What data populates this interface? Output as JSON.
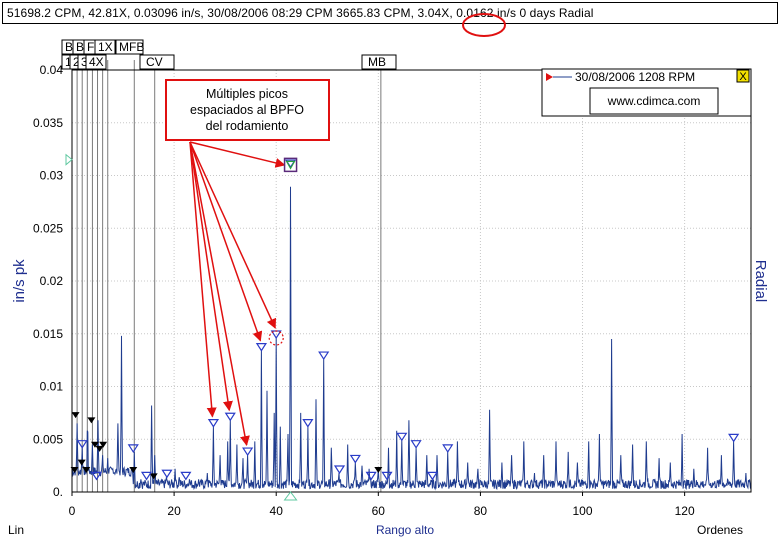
{
  "header": {
    "readout_before": "51698.2 CPM, 42.81X, 0.03096 in/s, 30/08/2006 08:29 CPM 3665.83 CPM, ",
    "readout_circled": "3.04X",
    "readout_after": ", 0.0162 in/s 0 days Radial"
  },
  "annotation": {
    "line1": "Múltiples picos",
    "line2": "espaciados al BPFO",
    "line3": "del rodamiento"
  },
  "legend": {
    "entry": "30/08/2006 1208 RPM",
    "website": "www.cdimca.com",
    "close_symbol": "X"
  },
  "fault_markers": {
    "top_row": [
      "BPFI",
      "BSF",
      "FTF",
      "1X",
      "MFB"
    ],
    "second_row": [
      "1X",
      "2X",
      "3X",
      "4X",
      "CV",
      "MB"
    ]
  },
  "colors": {
    "spectrum": "#1f3c8f",
    "harmonic_marker": "#2a3cc8",
    "annotation": "#e01010",
    "background": "#ffffff",
    "axis_label": "#1f2f8f"
  },
  "chart_data": {
    "type": "line",
    "title": "",
    "xlabel": "Rango alto",
    "ylabel": "in/s pk",
    "right_label": "Radial",
    "scale_label": "Lin",
    "xunit_label": "Ordenes",
    "xlim": [
      0,
      133
    ],
    "ylim": [
      0,
      0.04
    ],
    "xticks": [
      0,
      20,
      40,
      60,
      80,
      100,
      120
    ],
    "yticks": [
      "0.",
      "0.005",
      "0.01",
      "0.015",
      "0.02",
      "0.025",
      "0.03",
      "0.035",
      "0.04"
    ],
    "grid": true,
    "legend_position": "top-right",
    "cursor_peak": {
      "x": 42.81,
      "y": 0.03096
    },
    "harmonic_cursor": {
      "x": 40.0,
      "y": 0.0146
    },
    "fault_lines": [
      {
        "label": "1X",
        "x": 1
      },
      {
        "label": "BPFI",
        "x": 2
      },
      {
        "label": "2X",
        "x": 3
      },
      {
        "label": "BSF",
        "x": 4
      },
      {
        "label": "3X",
        "x": 5
      },
      {
        "label": "FTF",
        "x": 6
      },
      {
        "label": "4X",
        "x": 7
      },
      {
        "label": "MFB",
        "x": 12.2
      },
      {
        "label": "CV",
        "x": 16.2
      },
      {
        "label": "MB",
        "x": 60.5
      }
    ],
    "peaks": [
      {
        "x": 1.0,
        "y": 0.0065
      },
      {
        "x": 2.0,
        "y": 0.0042
      },
      {
        "x": 3.05,
        "y": 0.0075
      },
      {
        "x": 4.0,
        "y": 0.0045
      },
      {
        "x": 5.1,
        "y": 0.0068
      },
      {
        "x": 6.0,
        "y": 0.0035
      },
      {
        "x": 7.0,
        "y": 0.0032
      },
      {
        "x": 8.0,
        "y": 0.0022
      },
      {
        "x": 9.0,
        "y": 0.0065
      },
      {
        "x": 9.7,
        "y": 0.0148
      },
      {
        "x": 11.0,
        "y": 0.0018
      },
      {
        "x": 12.2,
        "y": 0.0038
      },
      {
        "x": 13.5,
        "y": 0.0012
      },
      {
        "x": 15.6,
        "y": 0.0082
      },
      {
        "x": 16.2,
        "y": 0.0035
      },
      {
        "x": 18.5,
        "y": 0.0014
      },
      {
        "x": 20.2,
        "y": 0.0022
      },
      {
        "x": 21.0,
        "y": 0.0014
      },
      {
        "x": 23.0,
        "y": 0.0012
      },
      {
        "x": 24.8,
        "y": 0.0012
      },
      {
        "x": 26.5,
        "y": 0.0018
      },
      {
        "x": 27.7,
        "y": 0.0062
      },
      {
        "x": 29.0,
        "y": 0.0035
      },
      {
        "x": 30.5,
        "y": 0.0048
      },
      {
        "x": 31.0,
        "y": 0.0068
      },
      {
        "x": 32.3,
        "y": 0.0045
      },
      {
        "x": 33.5,
        "y": 0.0032
      },
      {
        "x": 34.4,
        "y": 0.0035
      },
      {
        "x": 35.8,
        "y": 0.0048
      },
      {
        "x": 37.1,
        "y": 0.0134
      },
      {
        "x": 38.2,
        "y": 0.0096
      },
      {
        "x": 39.6,
        "y": 0.0075
      },
      {
        "x": 40.0,
        "y": 0.0146
      },
      {
        "x": 40.8,
        "y": 0.0062
      },
      {
        "x": 42.3,
        "y": 0.0055
      },
      {
        "x": 42.81,
        "y": 0.0308
      },
      {
        "x": 44.8,
        "y": 0.0075
      },
      {
        "x": 46.2,
        "y": 0.0062
      },
      {
        "x": 47.8,
        "y": 0.0088
      },
      {
        "x": 49.3,
        "y": 0.0126
      },
      {
        "x": 50.8,
        "y": 0.0042
      },
      {
        "x": 52.3,
        "y": 0.0018
      },
      {
        "x": 54.0,
        "y": 0.0045
      },
      {
        "x": 55.5,
        "y": 0.0028
      },
      {
        "x": 56.8,
        "y": 0.0025
      },
      {
        "x": 58.2,
        "y": 0.0022
      },
      {
        "x": 60.0,
        "y": 0.0022
      },
      {
        "x": 62.0,
        "y": 0.0042
      },
      {
        "x": 63.6,
        "y": 0.0058
      },
      {
        "x": 64.6,
        "y": 0.0049
      },
      {
        "x": 66.0,
        "y": 0.0068
      },
      {
        "x": 67.4,
        "y": 0.0042
      },
      {
        "x": 69.5,
        "y": 0.0035
      },
      {
        "x": 71.5,
        "y": 0.0035
      },
      {
        "x": 73.6,
        "y": 0.0038
      },
      {
        "x": 75.5,
        "y": 0.0048
      },
      {
        "x": 77.5,
        "y": 0.0028
      },
      {
        "x": 79.5,
        "y": 0.0022
      },
      {
        "x": 81.8,
        "y": 0.0078
      },
      {
        "x": 84.2,
        "y": 0.0028
      },
      {
        "x": 86.1,
        "y": 0.0035
      },
      {
        "x": 88.5,
        "y": 0.0048
      },
      {
        "x": 90.6,
        "y": 0.0018
      },
      {
        "x": 92.4,
        "y": 0.0035
      },
      {
        "x": 94.8,
        "y": 0.0048
      },
      {
        "x": 97.2,
        "y": 0.0038
      },
      {
        "x": 99.0,
        "y": 0.0028
      },
      {
        "x": 101.2,
        "y": 0.0048
      },
      {
        "x": 103.3,
        "y": 0.0055
      },
      {
        "x": 105.7,
        "y": 0.0145
      },
      {
        "x": 107.5,
        "y": 0.0035
      },
      {
        "x": 109.8,
        "y": 0.0045
      },
      {
        "x": 112.5,
        "y": 0.0048
      },
      {
        "x": 115.0,
        "y": 0.0032
      },
      {
        "x": 117.2,
        "y": 0.0028
      },
      {
        "x": 119.5,
        "y": 0.0055
      },
      {
        "x": 121.8,
        "y": 0.0022
      },
      {
        "x": 124.5,
        "y": 0.0042
      },
      {
        "x": 127.2,
        "y": 0.0035
      },
      {
        "x": 129.6,
        "y": 0.0048
      },
      {
        "x": 132.0,
        "y": 0.0018
      }
    ],
    "harmonic_markers_x": [
      2.0,
      4.8,
      12.0,
      14.6,
      18.6,
      22.3,
      27.7,
      31.0,
      34.4,
      37.1,
      40.0,
      42.81,
      46.2,
      49.3,
      52.4,
      55.5,
      58.6,
      61.7,
      64.6,
      67.4,
      70.6,
      73.6,
      129.6
    ],
    "low_freq_markers": [
      {
        "x": 0.5,
        "y": 0.0018
      },
      {
        "x": 0.7,
        "y": 0.007
      },
      {
        "x": 1.9,
        "y": 0.0025
      },
      {
        "x": 2.8,
        "y": 0.0018
      },
      {
        "x": 3.8,
        "y": 0.0065
      },
      {
        "x": 4.5,
        "y": 0.0042
      },
      {
        "x": 5.4,
        "y": 0.0038
      },
      {
        "x": 6.1,
        "y": 0.0042
      },
      {
        "x": 12.0,
        "y": 0.0018
      },
      {
        "x": 16.0,
        "y": 0.0012
      },
      {
        "x": 60.0,
        "y": 0.0018
      }
    ]
  }
}
